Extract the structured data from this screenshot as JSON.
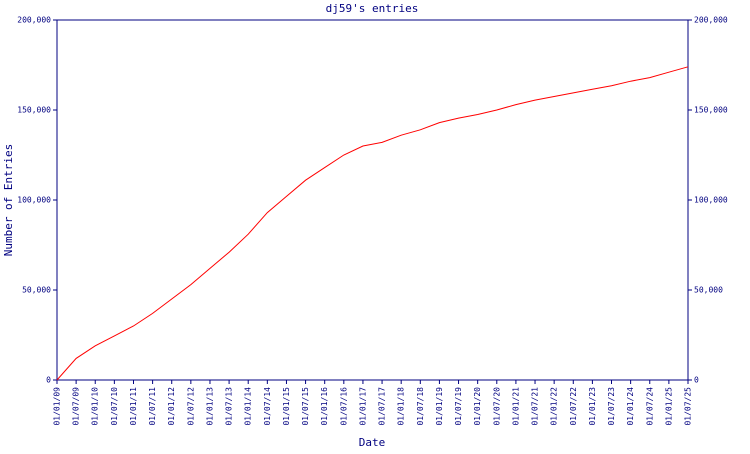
{
  "chart_data": {
    "type": "line",
    "title": "dj59's entries",
    "x_label": "Date",
    "y_label": "Number of Entries",
    "categories": [
      "01/01/09",
      "01/07/09",
      "01/01/10",
      "01/07/10",
      "01/01/11",
      "01/07/11",
      "01/01/12",
      "01/07/12",
      "01/01/13",
      "01/07/13",
      "01/01/14",
      "01/07/14",
      "01/01/15",
      "01/07/15",
      "01/01/16",
      "01/07/16",
      "01/01/17",
      "01/07/17",
      "01/01/18",
      "01/07/18",
      "01/01/19",
      "01/07/19",
      "01/01/20",
      "01/07/20",
      "01/01/21",
      "01/07/21",
      "01/01/22",
      "01/07/22",
      "01/01/23",
      "01/07/23",
      "01/01/24",
      "01/07/24",
      "01/01/25",
      "01/07/25"
    ],
    "series": [
      {
        "name": "entries",
        "color": "#ff0000",
        "values": [
          0,
          12000,
          19000,
          24500,
          30000,
          37000,
          45000,
          53000,
          62000,
          71000,
          81000,
          93000,
          102000,
          111000,
          118000,
          125000,
          130000,
          132000,
          136000,
          139000,
          143000,
          145500,
          147500,
          150000,
          153000,
          155500,
          157500,
          159500,
          161500,
          163500,
          166000,
          168000,
          171000,
          174000
        ]
      }
    ],
    "ylim": [
      0,
      200000
    ],
    "yticks": [
      0,
      {
        "value": 50000,
        "label": "50,000"
      },
      {
        "value": 100000,
        "label": "100,000"
      },
      {
        "value": 150000,
        "label": "150,000"
      },
      {
        "value": 200000,
        "label": "200,000"
      }
    ],
    "axis_color": "#000080"
  }
}
